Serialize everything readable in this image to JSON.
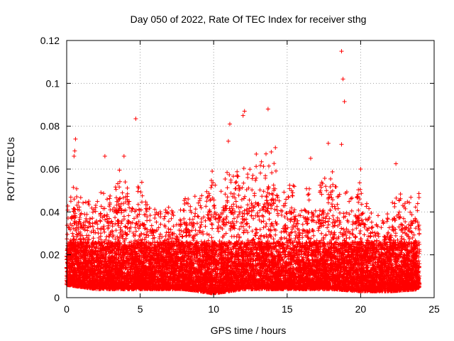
{
  "chart_data": {
    "type": "scatter",
    "title": "Day 050 of 2022, Rate Of TEC Index for receiver sthg",
    "xlabel": "GPS time / hours",
    "ylabel": "ROTI / TECUs",
    "xlim": [
      0,
      25
    ],
    "ylim": [
      0,
      0.12
    ],
    "x_ticks": [
      0,
      5,
      10,
      15,
      20,
      25
    ],
    "x_tick_labels": [
      "0",
      "5",
      "10",
      "15",
      "20",
      "25"
    ],
    "y_ticks": [
      0,
      0.02,
      0.04,
      0.06,
      0.08,
      0.1,
      0.12
    ],
    "y_tick_labels": [
      "0",
      "0.02",
      "0.04",
      "0.06",
      "0.08",
      "0.1",
      "0.12"
    ],
    "grid": true,
    "marker": "plus",
    "color": "#ff0000",
    "x_range_hours": [
      0,
      24
    ],
    "notable_points": [
      {
        "x": 18.7,
        "y": 0.115
      },
      {
        "x": 18.8,
        "y": 0.102
      },
      {
        "x": 18.9,
        "y": 0.0915
      },
      {
        "x": 4.7,
        "y": 0.0835
      },
      {
        "x": 12.1,
        "y": 0.087
      },
      {
        "x": 12.0,
        "y": 0.085
      },
      {
        "x": 13.7,
        "y": 0.088
      },
      {
        "x": 11.1,
        "y": 0.081
      },
      {
        "x": 0.6,
        "y": 0.074
      },
      {
        "x": 18.7,
        "y": 0.0715
      },
      {
        "x": 0.55,
        "y": 0.0685
      },
      {
        "x": 0.5,
        "y": 0.066
      },
      {
        "x": 2.6,
        "y": 0.066
      },
      {
        "x": 3.9,
        "y": 0.066
      },
      {
        "x": 12.9,
        "y": 0.067
      },
      {
        "x": 14.2,
        "y": 0.07
      },
      {
        "x": 16.6,
        "y": 0.065
      },
      {
        "x": 17.8,
        "y": 0.072
      },
      {
        "x": 22.4,
        "y": 0.0625
      },
      {
        "x": 11.0,
        "y": 0.073
      },
      {
        "x": 9.9,
        "y": 0.059
      },
      {
        "x": 20.0,
        "y": 0.06
      }
    ],
    "envelope": [
      {
        "x": 0.0,
        "y": 0.041
      },
      {
        "x": 0.5,
        "y": 0.057
      },
      {
        "x": 1.0,
        "y": 0.048
      },
      {
        "x": 1.5,
        "y": 0.045
      },
      {
        "x": 2.0,
        "y": 0.044
      },
      {
        "x": 2.5,
        "y": 0.058
      },
      {
        "x": 3.0,
        "y": 0.047
      },
      {
        "x": 3.5,
        "y": 0.06
      },
      {
        "x": 4.0,
        "y": 0.058
      },
      {
        "x": 4.5,
        "y": 0.044
      },
      {
        "x": 5.0,
        "y": 0.058
      },
      {
        "x": 5.5,
        "y": 0.043
      },
      {
        "x": 6.0,
        "y": 0.042
      },
      {
        "x": 6.5,
        "y": 0.04
      },
      {
        "x": 7.0,
        "y": 0.044
      },
      {
        "x": 7.5,
        "y": 0.038
      },
      {
        "x": 8.0,
        "y": 0.046
      },
      {
        "x": 8.5,
        "y": 0.05
      },
      {
        "x": 9.0,
        "y": 0.048
      },
      {
        "x": 9.5,
        "y": 0.052
      },
      {
        "x": 10.0,
        "y": 0.058
      },
      {
        "x": 10.5,
        "y": 0.054
      },
      {
        "x": 11.0,
        "y": 0.062
      },
      {
        "x": 11.5,
        "y": 0.058
      },
      {
        "x": 12.0,
        "y": 0.062
      },
      {
        "x": 12.5,
        "y": 0.064
      },
      {
        "x": 13.0,
        "y": 0.063
      },
      {
        "x": 13.5,
        "y": 0.068
      },
      {
        "x": 14.0,
        "y": 0.07
      },
      {
        "x": 14.5,
        "y": 0.06
      },
      {
        "x": 15.0,
        "y": 0.058
      },
      {
        "x": 15.5,
        "y": 0.052
      },
      {
        "x": 16.0,
        "y": 0.046
      },
      {
        "x": 16.5,
        "y": 0.055
      },
      {
        "x": 17.0,
        "y": 0.05
      },
      {
        "x": 17.5,
        "y": 0.056
      },
      {
        "x": 18.0,
        "y": 0.066
      },
      {
        "x": 18.5,
        "y": 0.058
      },
      {
        "x": 19.0,
        "y": 0.05
      },
      {
        "x": 19.5,
        "y": 0.046
      },
      {
        "x": 20.0,
        "y": 0.055
      },
      {
        "x": 20.5,
        "y": 0.042
      },
      {
        "x": 21.0,
        "y": 0.04
      },
      {
        "x": 21.5,
        "y": 0.038
      },
      {
        "x": 22.0,
        "y": 0.04
      },
      {
        "x": 22.5,
        "y": 0.055
      },
      {
        "x": 23.0,
        "y": 0.044
      },
      {
        "x": 23.5,
        "y": 0.048
      },
      {
        "x": 24.0,
        "y": 0.05
      }
    ],
    "baseline": [
      {
        "x": 0.0,
        "y": 0.006
      },
      {
        "x": 2.0,
        "y": 0.004
      },
      {
        "x": 4.0,
        "y": 0.004
      },
      {
        "x": 6.0,
        "y": 0.004
      },
      {
        "x": 8.0,
        "y": 0.004
      },
      {
        "x": 10.0,
        "y": 0.002
      },
      {
        "x": 12.0,
        "y": 0.004
      },
      {
        "x": 14.0,
        "y": 0.004
      },
      {
        "x": 16.0,
        "y": 0.004
      },
      {
        "x": 18.0,
        "y": 0.004
      },
      {
        "x": 20.0,
        "y": 0.003
      },
      {
        "x": 22.0,
        "y": 0.003
      },
      {
        "x": 24.0,
        "y": 0.004
      }
    ]
  }
}
